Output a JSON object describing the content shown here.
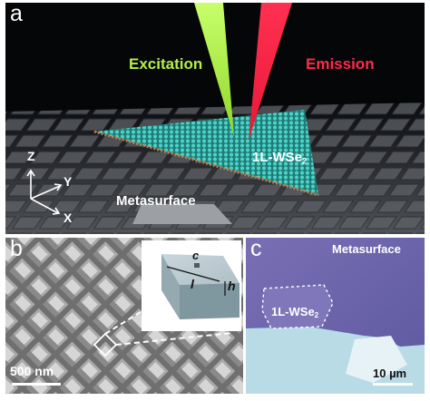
{
  "figure": {
    "panel_a": {
      "label": "a",
      "excitation": "Excitation",
      "emission": "Emission",
      "material": "1L-WSe",
      "material_sub": "2",
      "substrate": "Metasurface",
      "axis_z": "Z",
      "axis_y": "Y",
      "axis_x": "X",
      "colors": {
        "excitation": "#b4f048",
        "emission": "#ff2a4a",
        "lattice": "#2fb7b0"
      }
    },
    "panel_b": {
      "label": "b",
      "scalebar": "500 nm",
      "inset_c": "c",
      "inset_l": "l",
      "inset_h": "h"
    },
    "panel_c": {
      "label": "c",
      "title": "Metasurface",
      "material": "1L-WSe",
      "material_sub": "2",
      "scalebar": "10 µm"
    }
  }
}
